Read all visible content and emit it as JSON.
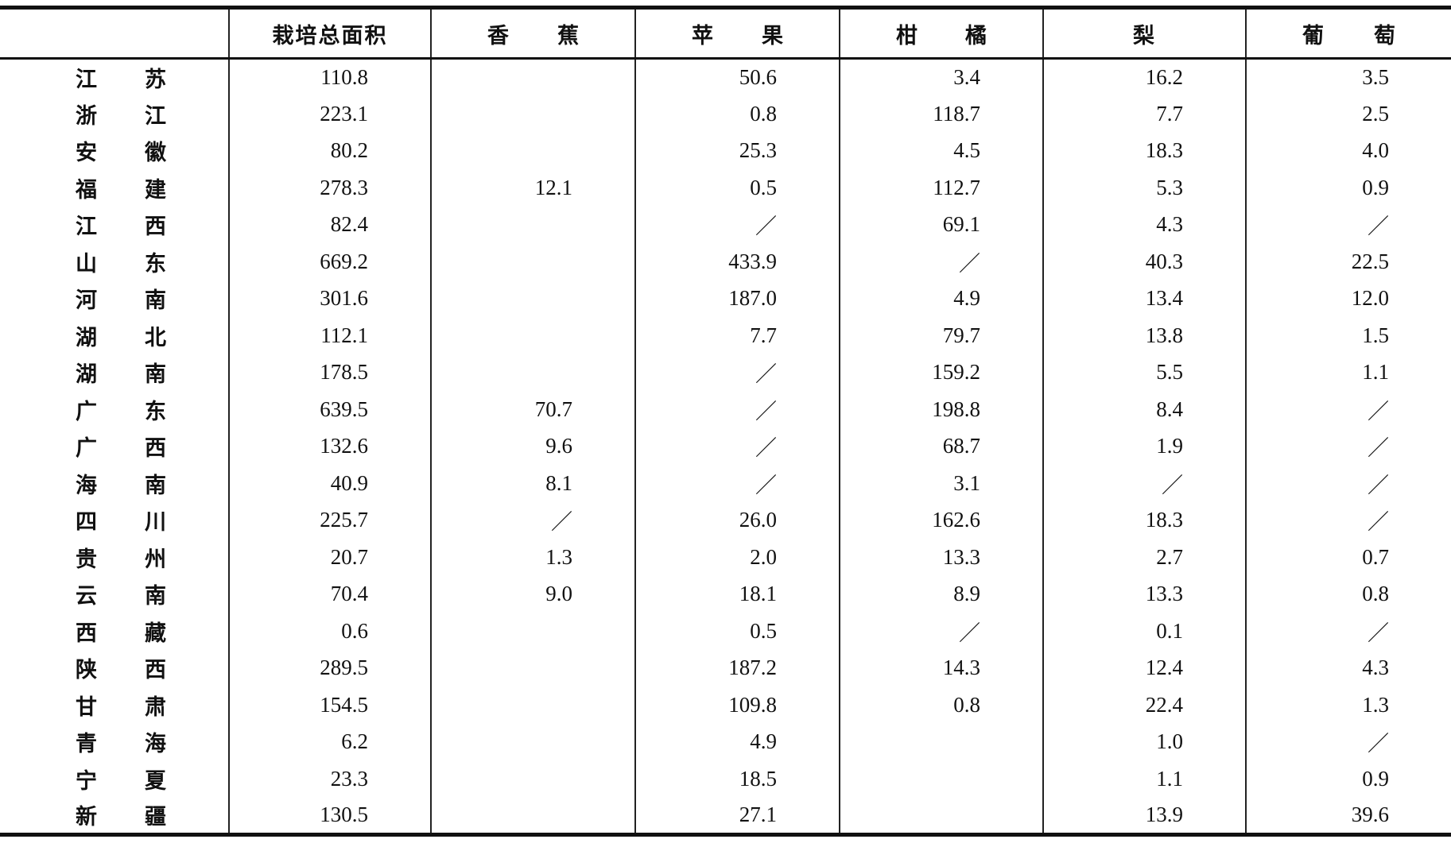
{
  "table": {
    "columns": [
      "栽培总面积",
      "香蕉",
      "苹果",
      "柑橘",
      "梨",
      "葡萄"
    ],
    "rows": [
      {
        "region": "江苏",
        "cells": [
          "110.8",
          null,
          "50.6",
          "3.4",
          "16.2",
          "3.5"
        ]
      },
      {
        "region": "浙江",
        "cells": [
          "223.1",
          null,
          "0.8",
          "118.7",
          "7.7",
          "2.5"
        ]
      },
      {
        "region": "安徽",
        "cells": [
          "80.2",
          null,
          "25.3",
          "4.5",
          "18.3",
          "4.0"
        ]
      },
      {
        "region": "福建",
        "cells": [
          "278.3",
          "12.1",
          "0.5",
          "112.7",
          "5.3",
          "0.9"
        ]
      },
      {
        "region": "江西",
        "cells": [
          "82.4",
          null,
          "／",
          "69.1",
          "4.3",
          "／"
        ]
      },
      {
        "region": "山东",
        "cells": [
          "669.2",
          null,
          "433.9",
          "／",
          "40.3",
          "22.5"
        ]
      },
      {
        "region": "河南",
        "cells": [
          "301.6",
          null,
          "187.0",
          "4.9",
          "13.4",
          "12.0"
        ]
      },
      {
        "region": "湖北",
        "cells": [
          "112.1",
          null,
          "7.7",
          "79.7",
          "13.8",
          "1.5"
        ]
      },
      {
        "region": "湖南",
        "cells": [
          "178.5",
          null,
          "／",
          "159.2",
          "5.5",
          "1.1"
        ]
      },
      {
        "region": "广东",
        "cells": [
          "639.5",
          "70.7",
          "／",
          "198.8",
          "8.4",
          "／"
        ]
      },
      {
        "region": "广西",
        "cells": [
          "132.6",
          "9.6",
          "／",
          "68.7",
          "1.9",
          "／"
        ]
      },
      {
        "region": "海南",
        "cells": [
          "40.9",
          "8.1",
          "／",
          "3.1",
          "／",
          "／"
        ]
      },
      {
        "region": "四川",
        "cells": [
          "225.7",
          "／",
          "26.0",
          "162.6",
          "18.3",
          "／"
        ]
      },
      {
        "region": "贵州",
        "cells": [
          "20.7",
          "1.3",
          "2.0",
          "13.3",
          "2.7",
          "0.7"
        ]
      },
      {
        "region": "云南",
        "cells": [
          "70.4",
          "9.0",
          "18.1",
          "8.9",
          "13.3",
          "0.8"
        ]
      },
      {
        "region": "西藏",
        "cells": [
          "0.6",
          null,
          "0.5",
          "／",
          "0.1",
          "／"
        ]
      },
      {
        "region": "陕西",
        "cells": [
          "289.5",
          null,
          "187.2",
          "14.3",
          "12.4",
          "4.3"
        ]
      },
      {
        "region": "甘肃",
        "cells": [
          "154.5",
          null,
          "109.8",
          "0.8",
          "22.4",
          "1.3"
        ]
      },
      {
        "region": "青海",
        "cells": [
          "6.2",
          null,
          "4.9",
          null,
          "1.0",
          "／"
        ]
      },
      {
        "region": "宁夏",
        "cells": [
          "23.3",
          null,
          "18.5",
          null,
          "1.1",
          "0.9"
        ]
      },
      {
        "region": "新疆",
        "cells": [
          "130.5",
          null,
          "27.1",
          null,
          "13.9",
          "39.6"
        ]
      }
    ]
  }
}
